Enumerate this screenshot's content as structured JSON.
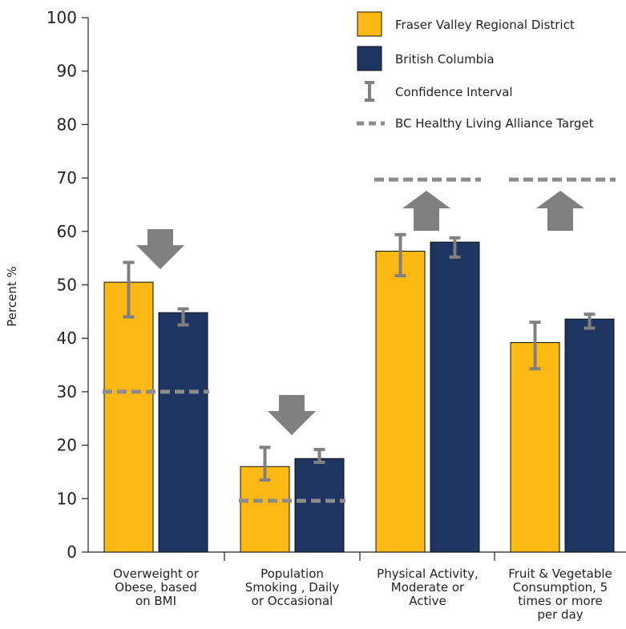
{
  "chart_data": {
    "type": "bar",
    "title": "",
    "ylabel": "Percent %",
    "xlabel": "",
    "ylim": [
      0,
      100
    ],
    "yticks": [
      0,
      10,
      20,
      30,
      40,
      50,
      60,
      70,
      80,
      90,
      100
    ],
    "grid": false,
    "legend_position": "top-right",
    "categories": [
      [
        "Overweight or",
        "Obese, based",
        "on BMI"
      ],
      [
        "Population",
        "Smoking , Daily",
        "or Occasional"
      ],
      [
        "Physical Activity,",
        "Moderate or",
        "Active"
      ],
      [
        "Fruit & Vegetable",
        "Consumption, 5",
        "times or more",
        "per day"
      ]
    ],
    "series": [
      {
        "name": "Fraser Valley Regional District",
        "color": "#FDB913",
        "values": [
          50.5,
          16.0,
          56.3,
          39.2
        ],
        "ci_low": [
          44.0,
          13.5,
          51.7,
          34.3
        ],
        "ci_high": [
          54.2,
          19.6,
          59.4,
          43.0
        ]
      },
      {
        "name": "British Columbia",
        "color": "#1E3461",
        "values": [
          44.8,
          17.5,
          58.0,
          43.6
        ],
        "ci_low": [
          42.5,
          16.8,
          55.2,
          41.9
        ],
        "ci_high": [
          45.5,
          19.2,
          58.8,
          44.5
        ]
      }
    ],
    "targets": [
      30,
      9.6,
      69.7,
      69.7
    ],
    "arrows": [
      "down",
      "down",
      "up",
      "up"
    ],
    "legend": {
      "fvrd": "Fraser Valley Regional District",
      "bc": "British Columbia",
      "ci": "Confidence Interval",
      "target": "BC Healthy Living Alliance Target"
    },
    "colors": {
      "fvrd": "#FDB913",
      "bc": "#1E3461",
      "ci": "#808080",
      "target": "#8C8C8C",
      "arrow": "#808080",
      "axis": "#222222"
    }
  }
}
